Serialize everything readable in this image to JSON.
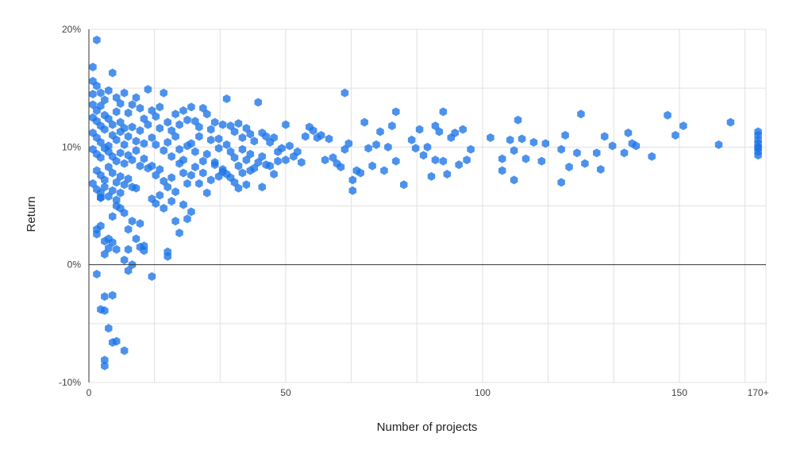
{
  "chart_data": {
    "type": "scatter",
    "xlabel": "Number of projects",
    "ylabel": "Return",
    "xlim": [
      0,
      172
    ],
    "ylim": [
      -10,
      20
    ],
    "x_ticks": [
      {
        "value": 0,
        "label": "0"
      },
      {
        "value": 50,
        "label": "50"
      },
      {
        "value": 100,
        "label": "100"
      },
      {
        "value": 150,
        "label": "150"
      },
      {
        "value": 170,
        "label": "170+"
      }
    ],
    "y_ticks": [
      {
        "value": -10,
        "label": "-10%"
      },
      {
        "value": 0,
        "label": "0%"
      },
      {
        "value": 10,
        "label": "10%"
      },
      {
        "value": 20,
        "label": "20%"
      }
    ],
    "grid": true,
    "colors": {
      "point": "#1a73e8",
      "grid": "#e0e0e0",
      "zero_line": "#333333"
    },
    "series": [
      {
        "values": [
          [
            2,
            19.1
          ],
          [
            1,
            16.8
          ],
          [
            1,
            15.6
          ],
          [
            2,
            15.2
          ],
          [
            1,
            14.5
          ],
          [
            3,
            14.6
          ],
          [
            6,
            16.3
          ],
          [
            1,
            13.6
          ],
          [
            2,
            13.1
          ],
          [
            3,
            13.5
          ],
          [
            4,
            14.0
          ],
          [
            5,
            14.8
          ],
          [
            7,
            14.2
          ],
          [
            8,
            13.7
          ],
          [
            9,
            14.6
          ],
          [
            1,
            12.5
          ],
          [
            2,
            12.2
          ],
          [
            3,
            11.8
          ],
          [
            4,
            12.7
          ],
          [
            5,
            12.4
          ],
          [
            6,
            11.9
          ],
          [
            7,
            13.0
          ],
          [
            8,
            12.1
          ],
          [
            9,
            11.6
          ],
          [
            10,
            12.9
          ],
          [
            11,
            13.6
          ],
          [
            12,
            14.2
          ],
          [
            13,
            13.3
          ],
          [
            14,
            12.4
          ],
          [
            15,
            14.9
          ],
          [
            1,
            11.2
          ],
          [
            2,
            10.8
          ],
          [
            3,
            10.4
          ],
          [
            4,
            11.5
          ],
          [
            5,
            10.1
          ],
          [
            6,
            11.0
          ],
          [
            7,
            10.6
          ],
          [
            8,
            11.3
          ],
          [
            9,
            10.2
          ],
          [
            10,
            10.9
          ],
          [
            11,
            11.7
          ],
          [
            12,
            10.5
          ],
          [
            13,
            11.4
          ],
          [
            14,
            10.3
          ],
          [
            15,
            11.9
          ],
          [
            1,
            9.8
          ],
          [
            2,
            9.4
          ],
          [
            3,
            9.1
          ],
          [
            4,
            9.9
          ],
          [
            5,
            9.6
          ],
          [
            6,
            9.2
          ],
          [
            7,
            8.8
          ],
          [
            8,
            9.5
          ],
          [
            9,
            8.6
          ],
          [
            10,
            9.3
          ],
          [
            11,
            8.9
          ],
          [
            12,
            9.7
          ],
          [
            13,
            8.4
          ],
          [
            14,
            9.0
          ],
          [
            15,
            8.2
          ],
          [
            2,
            8.0
          ],
          [
            3,
            7.6
          ],
          [
            4,
            7.2
          ],
          [
            5,
            8.3
          ],
          [
            6,
            7.8
          ],
          [
            7,
            7.0
          ],
          [
            8,
            7.5
          ],
          [
            9,
            6.8
          ],
          [
            10,
            7.3
          ],
          [
            11,
            6.6
          ],
          [
            1,
            6.9
          ],
          [
            2,
            6.4
          ],
          [
            3,
            6.1
          ],
          [
            4,
            6.6
          ],
          [
            5,
            5.8
          ],
          [
            6,
            6.3
          ],
          [
            7,
            5.5
          ],
          [
            3,
            5.7
          ],
          [
            8,
            6.1
          ],
          [
            12,
            6.5
          ],
          [
            16,
            13.1
          ],
          [
            17,
            12.6
          ],
          [
            18,
            13.4
          ],
          [
            19,
            14.6
          ],
          [
            20,
            12.1
          ],
          [
            21,
            11.4
          ],
          [
            22,
            12.8
          ],
          [
            23,
            11.9
          ],
          [
            24,
            13.1
          ],
          [
            25,
            12.3
          ],
          [
            16,
            10.8
          ],
          [
            17,
            10.2
          ],
          [
            18,
            11.6
          ],
          [
            19,
            9.7
          ],
          [
            20,
            10.4
          ],
          [
            21,
            9.2
          ],
          [
            22,
            10.9
          ],
          [
            23,
            9.8
          ],
          [
            24,
            8.9
          ],
          [
            25,
            10.1
          ],
          [
            16,
            8.4
          ],
          [
            17,
            7.6
          ],
          [
            18,
            8.1
          ],
          [
            19,
            7.1
          ],
          [
            20,
            6.6
          ],
          [
            21,
            7.4
          ],
          [
            22,
            6.2
          ],
          [
            23,
            8.6
          ],
          [
            24,
            7.8
          ],
          [
            25,
            6.9
          ],
          [
            16,
            5.6
          ],
          [
            17,
            5.2
          ],
          [
            18,
            5.9
          ],
          [
            19,
            4.8
          ],
          [
            21,
            5.4
          ],
          [
            22,
            3.7
          ],
          [
            24,
            5.1
          ],
          [
            25,
            3.9
          ],
          [
            26,
            4.5
          ],
          [
            23,
            2.7
          ],
          [
            26,
            13.4
          ],
          [
            27,
            12.2
          ],
          [
            28,
            11.7
          ],
          [
            29,
            13.3
          ],
          [
            30,
            12.8
          ],
          [
            31,
            11.5
          ],
          [
            32,
            12.1
          ],
          [
            33,
            10.7
          ],
          [
            34,
            11.9
          ],
          [
            35,
            14.1
          ],
          [
            26,
            10.3
          ],
          [
            27,
            9.6
          ],
          [
            28,
            10.9
          ],
          [
            29,
            8.8
          ],
          [
            30,
            9.4
          ],
          [
            31,
            10.6
          ],
          [
            32,
            8.5
          ],
          [
            33,
            9.9
          ],
          [
            34,
            8.1
          ],
          [
            35,
            10.2
          ],
          [
            26,
            7.6
          ],
          [
            27,
            8.3
          ],
          [
            28,
            6.9
          ],
          [
            29,
            7.8
          ],
          [
            30,
            6.1
          ],
          [
            31,
            7.2
          ],
          [
            32,
            8.7
          ],
          [
            33,
            7.5
          ],
          [
            34,
            7.9
          ],
          [
            35,
            7.7
          ],
          [
            36,
            11.8
          ],
          [
            37,
            11.3
          ],
          [
            38,
            12.0
          ],
          [
            39,
            10.8
          ],
          [
            40,
            11.6
          ],
          [
            41,
            11.1
          ],
          [
            42,
            10.5
          ],
          [
            43,
            13.8
          ],
          [
            44,
            11.2
          ],
          [
            45,
            10.9
          ],
          [
            36,
            9.6
          ],
          [
            37,
            9.1
          ],
          [
            38,
            8.4
          ],
          [
            39,
            9.8
          ],
          [
            40,
            8.9
          ],
          [
            41,
            9.4
          ],
          [
            42,
            8.2
          ],
          [
            43,
            8.7
          ],
          [
            44,
            9.2
          ],
          [
            45,
            8.5
          ],
          [
            36,
            7.4
          ],
          [
            37,
            7.0
          ],
          [
            38,
            6.5
          ],
          [
            39,
            7.8
          ],
          [
            40,
            6.8
          ],
          [
            41,
            8.0
          ],
          [
            44,
            6.6
          ],
          [
            46,
            8.4
          ],
          [
            47,
            7.7
          ],
          [
            48,
            8.8
          ],
          [
            46,
            10.4
          ],
          [
            47,
            10.8
          ],
          [
            48,
            9.6
          ],
          [
            49,
            9.9
          ],
          [
            50,
            11.9
          ],
          [
            50,
            8.9
          ],
          [
            51,
            10.1
          ],
          [
            52,
            9.2
          ],
          [
            53,
            9.6
          ],
          [
            54,
            8.7
          ],
          [
            55,
            10.9
          ],
          [
            56,
            11.7
          ],
          [
            57,
            11.4
          ],
          [
            58,
            10.8
          ],
          [
            59,
            11.0
          ],
          [
            60,
            8.9
          ],
          [
            61,
            10.7
          ],
          [
            62,
            9.1
          ],
          [
            63,
            8.6
          ],
          [
            64,
            8.3
          ],
          [
            65,
            14.6
          ],
          [
            65,
            9.8
          ],
          [
            66,
            10.3
          ],
          [
            67,
            7.2
          ],
          [
            67,
            6.3
          ],
          [
            68,
            8.0
          ],
          [
            69,
            7.8
          ],
          [
            70,
            12.1
          ],
          [
            71,
            9.9
          ],
          [
            72,
            8.4
          ],
          [
            73,
            10.2
          ],
          [
            74,
            11.3
          ],
          [
            75,
            8.0
          ],
          [
            76,
            10.0
          ],
          [
            77,
            11.8
          ],
          [
            78,
            13.0
          ],
          [
            78,
            8.8
          ],
          [
            80,
            6.8
          ],
          [
            82,
            10.6
          ],
          [
            83,
            9.9
          ],
          [
            84,
            11.5
          ],
          [
            85,
            9.3
          ],
          [
            86,
            10.0
          ],
          [
            87,
            7.5
          ],
          [
            88,
            11.8
          ],
          [
            88,
            8.9
          ],
          [
            89,
            11.3
          ],
          [
            90,
            13.0
          ],
          [
            90,
            8.8
          ],
          [
            91,
            7.7
          ],
          [
            92,
            10.8
          ],
          [
            93,
            11.2
          ],
          [
            94,
            8.5
          ],
          [
            95,
            11.5
          ],
          [
            96,
            8.9
          ],
          [
            97,
            9.8
          ],
          [
            102,
            10.8
          ],
          [
            105,
            9.0
          ],
          [
            105,
            8.0
          ],
          [
            107,
            10.6
          ],
          [
            108,
            9.7
          ],
          [
            108,
            7.2
          ],
          [
            109,
            12.3
          ],
          [
            110,
            10.7
          ],
          [
            111,
            9.0
          ],
          [
            113,
            10.4
          ],
          [
            115,
            8.8
          ],
          [
            116,
            10.3
          ],
          [
            120,
            9.8
          ],
          [
            120,
            7.0
          ],
          [
            121,
            11.0
          ],
          [
            122,
            8.3
          ],
          [
            124,
            9.5
          ],
          [
            125,
            12.8
          ],
          [
            126,
            8.6
          ],
          [
            129,
            9.5
          ],
          [
            130,
            8.1
          ],
          [
            131,
            10.9
          ],
          [
            133,
            10.1
          ],
          [
            136,
            9.5
          ],
          [
            137,
            11.2
          ],
          [
            138,
            10.3
          ],
          [
            139,
            10.1
          ],
          [
            143,
            9.2
          ],
          [
            147,
            12.7
          ],
          [
            149,
            11.0
          ],
          [
            151,
            11.8
          ],
          [
            160,
            10.2
          ],
          [
            163,
            12.1
          ],
          [
            170,
            11.3
          ],
          [
            170,
            11.0
          ],
          [
            170,
            10.6
          ],
          [
            170,
            10.3
          ],
          [
            170,
            9.9
          ],
          [
            170,
            9.6
          ],
          [
            170,
            9.3
          ],
          [
            170,
            10.0
          ],
          [
            2,
            3.0
          ],
          [
            2,
            2.6
          ],
          [
            3,
            5.7
          ],
          [
            3,
            3.3
          ],
          [
            4,
            2.0
          ],
          [
            5,
            2.2
          ],
          [
            4,
            0.9
          ],
          [
            5,
            1.4
          ],
          [
            6,
            1.9
          ],
          [
            7,
            1.3
          ],
          [
            6,
            4.1
          ],
          [
            7,
            5.0
          ],
          [
            8,
            4.8
          ],
          [
            9,
            4.4
          ],
          [
            10,
            3.0
          ],
          [
            10,
            1.3
          ],
          [
            11,
            3.7
          ],
          [
            12,
            2.2
          ],
          [
            13,
            1.5
          ],
          [
            13,
            3.5
          ],
          [
            14,
            1.6
          ],
          [
            14,
            1.2
          ],
          [
            11,
            0.0
          ],
          [
            10,
            -0.5
          ],
          [
            9,
            0.4
          ],
          [
            16,
            -1.0
          ],
          [
            20,
            1.1
          ],
          [
            20,
            0.7
          ],
          [
            2,
            -0.8
          ],
          [
            3,
            -3.8
          ],
          [
            4,
            -2.7
          ],
          [
            6,
            -2.6
          ],
          [
            4,
            -3.9
          ],
          [
            5,
            -5.4
          ],
          [
            6,
            -6.6
          ],
          [
            7,
            -6.5
          ],
          [
            9,
            -7.3
          ],
          [
            4,
            -8.1
          ],
          [
            4,
            -8.6
          ]
        ]
      }
    ]
  }
}
